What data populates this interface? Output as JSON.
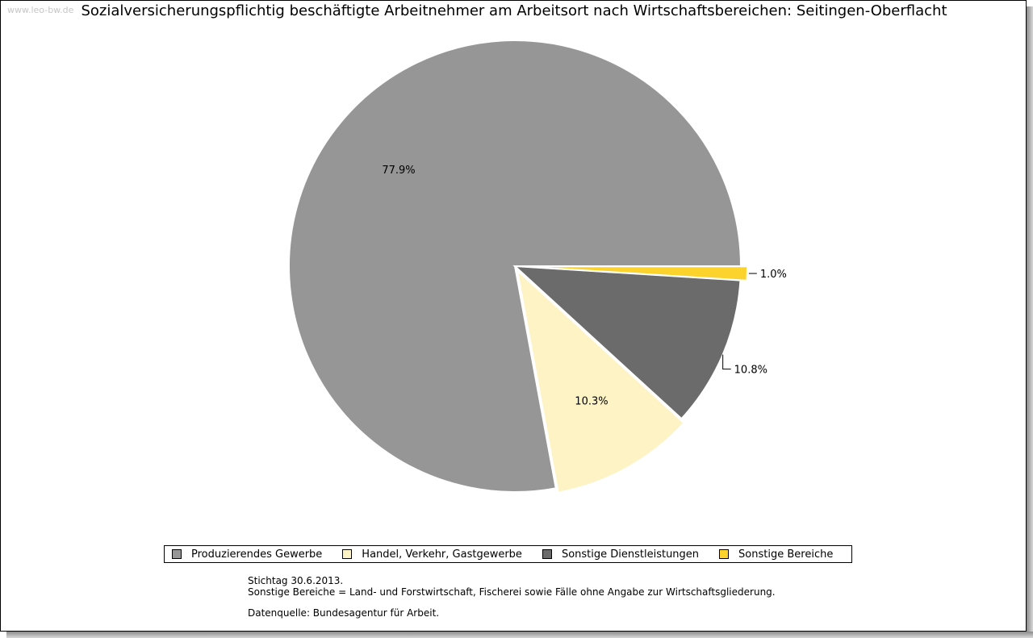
{
  "watermark": "www.leo-bw.de",
  "chart_data": {
    "type": "pie",
    "title": "Sozialversicherungspflichtig beschäftigte Arbeitnehmer am Arbeitsort nach Wirtschaftsbereichen: Seitingen-Oberflacht",
    "slices": [
      {
        "name": "Produzierendes Gewerbe",
        "value": 77.9,
        "label": "77.9%",
        "color": "#969696"
      },
      {
        "name": "Handel, Verkehr, Gastgewerbe",
        "value": 10.3,
        "label": "10.3%",
        "color": "#fdf3c4"
      },
      {
        "name": "Sonstige Dienstleistungen",
        "value": 10.8,
        "label": "10.8%",
        "color": "#6b6b6b"
      },
      {
        "name": "Sonstige Bereiche",
        "value": 1.0,
        "label": "1.0%",
        "color": "#fcd22c"
      }
    ],
    "legend_position": "bottom"
  },
  "notes": {
    "line1": "Stichtag 30.6.2013.",
    "line2": "Sonstige Bereiche = Land- und Forstwirtschaft, Fischerei sowie Fälle ohne Angabe zur Wirtschaftsgliederung.",
    "source": "Datenquelle: Bundesagentur für Arbeit."
  }
}
